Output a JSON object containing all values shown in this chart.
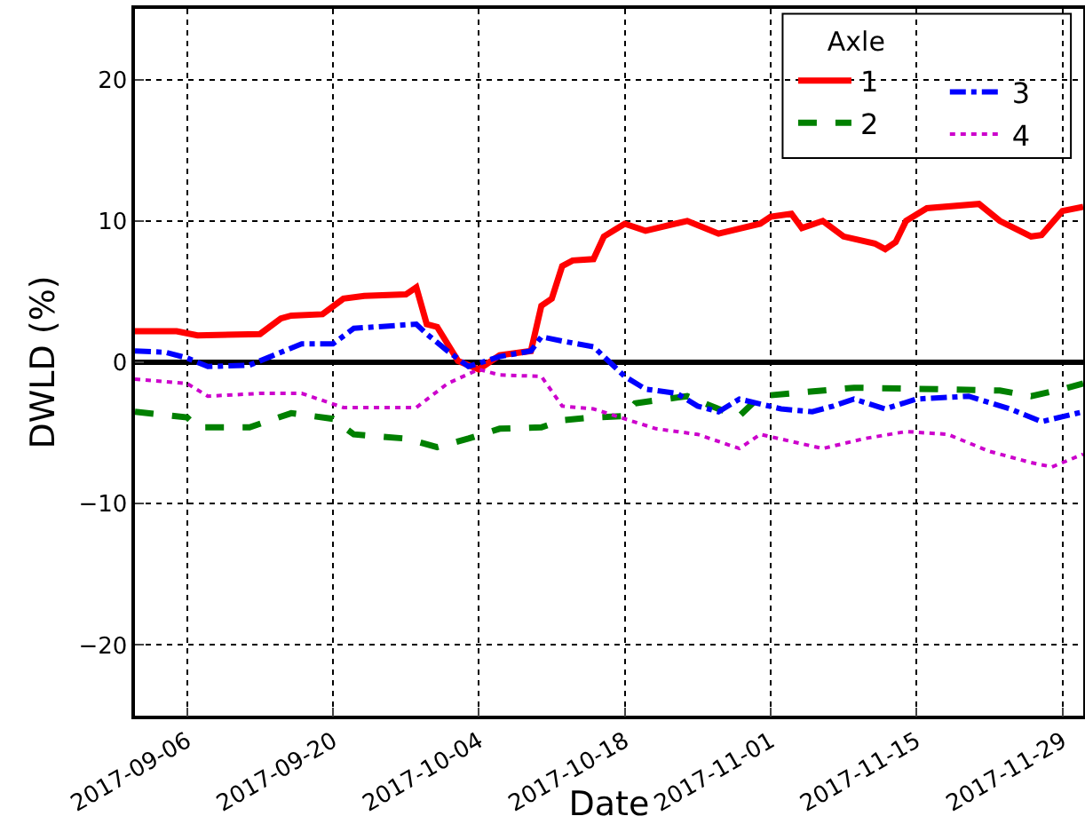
{
  "chart_data": {
    "type": "line",
    "xlabel": "Date",
    "ylabel": "DWLD (%)",
    "legend_title": "Axle",
    "legend": "top right",
    "grid": true,
    "xlim": [
      "2017-09-01",
      "2017-12-01"
    ],
    "ylim": [
      -25,
      25
    ],
    "xticks": [
      {
        "value": "2017-09-06",
        "label": "2017-09-06"
      },
      {
        "value": "2017-09-20",
        "label": "2017-09-20"
      },
      {
        "value": "2017-10-04",
        "label": "2017-10-04"
      },
      {
        "value": "2017-10-18",
        "label": "2017-10-18"
      },
      {
        "value": "2017-11-01",
        "label": "2017-11-01"
      },
      {
        "value": "2017-11-15",
        "label": "2017-11-15"
      },
      {
        "value": "2017-11-29",
        "label": "2017-11-29"
      }
    ],
    "yticks": [
      -20,
      -10,
      0,
      10,
      20
    ],
    "ref_lines": [
      {
        "axis": "y",
        "value": 0,
        "label": null,
        "color": "#000000",
        "line_style": "solid"
      }
    ],
    "series": [
      {
        "name": "1",
        "color": "#ff0000",
        "line_style": "solid",
        "x": [
          "2017-09-01",
          "2017-09-05",
          "2017-09-07",
          "2017-09-13",
          "2017-09-15",
          "2017-09-16",
          "2017-09-19",
          "2017-09-21",
          "2017-09-23",
          "2017-09-27",
          "2017-09-28",
          "2017-09-29",
          "2017-09-30",
          "2017-10-02",
          "2017-10-04",
          "2017-10-06",
          "2017-10-09",
          "2017-10-10",
          "2017-10-11",
          "2017-10-12",
          "2017-10-13",
          "2017-10-15",
          "2017-10-16",
          "2017-10-18",
          "2017-10-20",
          "2017-10-24",
          "2017-10-27",
          "2017-10-31",
          "2017-11-01",
          "2017-11-03",
          "2017-11-04",
          "2017-11-06",
          "2017-11-08",
          "2017-11-11",
          "2017-11-12",
          "2017-11-13",
          "2017-11-14",
          "2017-11-16",
          "2017-11-21",
          "2017-11-23",
          "2017-11-26",
          "2017-11-27",
          "2017-11-29",
          "2017-12-01"
        ],
        "values": [
          2.2,
          2.2,
          1.9,
          2.0,
          3.1,
          3.3,
          3.4,
          4.5,
          4.7,
          4.8,
          5.3,
          2.7,
          2.5,
          0.1,
          -0.5,
          0.5,
          0.8,
          4.0,
          4.5,
          6.8,
          7.2,
          7.3,
          8.9,
          9.8,
          9.3,
          10.0,
          9.1,
          9.8,
          10.3,
          10.5,
          9.5,
          10.0,
          8.9,
          8.4,
          8.0,
          8.5,
          10.0,
          10.9,
          11.2,
          10.0,
          8.9,
          9.0,
          10.7,
          11.0
        ]
      },
      {
        "name": "2",
        "color": "#008000",
        "line_style": "dashed",
        "x": [
          "2017-09-01",
          "2017-09-06",
          "2017-09-07",
          "2017-09-12",
          "2017-09-16",
          "2017-09-20",
          "2017-09-22",
          "2017-09-27",
          "2017-09-30",
          "2017-10-03",
          "2017-10-06",
          "2017-10-10",
          "2017-10-12",
          "2017-10-15",
          "2017-10-18",
          "2017-10-19",
          "2017-10-24",
          "2017-10-27",
          "2017-10-29",
          "2017-10-31",
          "2017-11-03",
          "2017-11-09",
          "2017-11-17",
          "2017-11-23",
          "2017-11-26",
          "2017-11-29",
          "2017-12-01"
        ],
        "values": [
          -3.5,
          -3.9,
          -4.6,
          -4.6,
          -3.6,
          -4.0,
          -5.1,
          -5.4,
          -6.0,
          -5.4,
          -4.7,
          -4.6,
          -4.1,
          -3.9,
          -3.8,
          -2.9,
          -2.4,
          -3.3,
          -3.8,
          -2.4,
          -2.2,
          -1.8,
          -1.9,
          -2.0,
          -2.4,
          -1.9,
          -1.5
        ]
      },
      {
        "name": "3",
        "color": "#0000ff",
        "line_style": "dashdot",
        "x": [
          "2017-09-01",
          "2017-09-04",
          "2017-09-06",
          "2017-09-08",
          "2017-09-12",
          "2017-09-14",
          "2017-09-17",
          "2017-09-20",
          "2017-09-22",
          "2017-09-28",
          "2017-09-29",
          "2017-10-01",
          "2017-10-03",
          "2017-10-06",
          "2017-10-09",
          "2017-10-10",
          "2017-10-12",
          "2017-10-15",
          "2017-10-17",
          "2017-10-18",
          "2017-10-20",
          "2017-10-23",
          "2017-10-25",
          "2017-10-27",
          "2017-10-29",
          "2017-11-02",
          "2017-11-05",
          "2017-11-07",
          "2017-11-09",
          "2017-11-12",
          "2017-11-15",
          "2017-11-20",
          "2017-11-24",
          "2017-11-27",
          "2017-12-01"
        ],
        "values": [
          0.8,
          0.7,
          0.3,
          -0.3,
          -0.2,
          0.4,
          1.3,
          1.3,
          2.4,
          2.7,
          2.0,
          0.8,
          -0.3,
          0.4,
          0.8,
          1.8,
          1.5,
          1.1,
          -0.3,
          -1.0,
          -1.9,
          -2.2,
          -3.1,
          -3.5,
          -2.6,
          -3.3,
          -3.5,
          -3.1,
          -2.6,
          -3.3,
          -2.6,
          -2.4,
          -3.3,
          -4.2,
          -3.5
        ]
      },
      {
        "name": "4",
        "color": "#cc00cc",
        "line_style": "dotted",
        "x": [
          "2017-09-01",
          "2017-09-06",
          "2017-09-08",
          "2017-09-13",
          "2017-09-17",
          "2017-09-21",
          "2017-09-28",
          "2017-10-01",
          "2017-10-04",
          "2017-10-06",
          "2017-10-10",
          "2017-10-12",
          "2017-10-15",
          "2017-10-18",
          "2017-10-21",
          "2017-10-25",
          "2017-10-29",
          "2017-10-31",
          "2017-11-03",
          "2017-11-06",
          "2017-11-10",
          "2017-11-14",
          "2017-11-18",
          "2017-11-22",
          "2017-11-26",
          "2017-11-28",
          "2017-12-01"
        ],
        "values": [
          -1.2,
          -1.5,
          -2.4,
          -2.2,
          -2.2,
          -3.2,
          -3.2,
          -1.5,
          -0.5,
          -0.9,
          -1.0,
          -3.1,
          -3.3,
          -4.0,
          -4.7,
          -5.1,
          -6.1,
          -5.1,
          -5.6,
          -6.1,
          -5.4,
          -4.9,
          -5.1,
          -6.3,
          -7.1,
          -7.4,
          -6.5
        ]
      }
    ]
  }
}
